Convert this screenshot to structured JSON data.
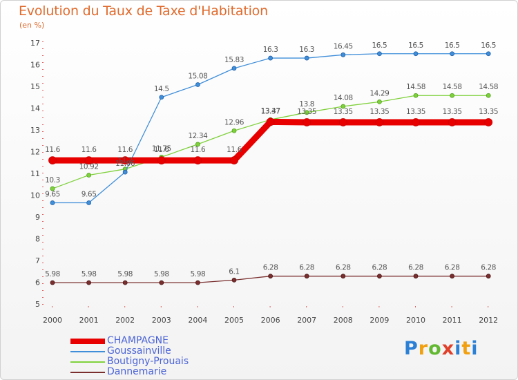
{
  "title": "Evolution du Taux de Taxe d'Habitation",
  "subtitle": "(en %)",
  "brand": "Proxiti",
  "chart_data": {
    "type": "line",
    "x": [
      "2000",
      "2001",
      "2002",
      "2003",
      "2004",
      "2005",
      "2006",
      "2007",
      "2008",
      "2009",
      "2010",
      "2011",
      "2012"
    ],
    "ylim": [
      5,
      17
    ],
    "yticks": [
      5,
      6,
      7,
      8,
      9,
      10,
      11,
      12,
      13,
      14,
      15,
      16,
      17
    ],
    "grid": false,
    "legend_placement": "bottom-left",
    "series": [
      {
        "name": "CHAMPAGNE",
        "color": "#e80000",
        "values": [
          11.6,
          11.6,
          11.6,
          11.6,
          11.6,
          11.6,
          13.37,
          13.35,
          13.35,
          13.35,
          13.35,
          13.35,
          13.35
        ],
        "labels": [
          "11.6",
          "11.6",
          "11.6",
          "11.6",
          "11.6",
          "11.6",
          "13.37",
          "13.35",
          "13.35",
          "13.35",
          "13.35",
          "13.35",
          "13.35"
        ]
      },
      {
        "name": "Goussainville",
        "color": "#3f8ed9",
        "values": [
          9.65,
          9.65,
          11.06,
          14.5,
          15.08,
          15.83,
          16.3,
          16.3,
          16.45,
          16.5,
          16.5,
          16.5,
          16.5
        ],
        "labels": [
          "9.65",
          "9.65",
          "11.06",
          "14.5",
          "15.08",
          "15.83",
          "16.3",
          "16.3",
          "16.45",
          "16.5",
          "16.5",
          "16.5",
          "16.5"
        ]
      },
      {
        "name": "Boutigny-Prouais",
        "color": "#7fd13b",
        "values": [
          10.3,
          10.92,
          11.2,
          11.75,
          12.34,
          12.96,
          13.47,
          13.8,
          14.08,
          14.29,
          14.58,
          14.58,
          14.58
        ],
        "labels": [
          "10.3",
          "10.92",
          "11.2",
          "11.75",
          "12.34",
          "12.96",
          "13.47",
          "13.8",
          "14.08",
          "14.29",
          "14.58",
          "14.58",
          "14.58"
        ]
      },
      {
        "name": "Dannemarie",
        "color": "#7a2e2e",
        "values": [
          5.98,
          5.98,
          5.98,
          5.98,
          5.98,
          6.1,
          6.28,
          6.28,
          6.28,
          6.28,
          6.28,
          6.28,
          6.28
        ],
        "labels": [
          "5.98",
          "5.98",
          "5.98",
          "5.98",
          "5.98",
          "6.1",
          "6.28",
          "6.28",
          "6.28",
          "6.28",
          "6.28",
          "6.28",
          "6.28"
        ]
      }
    ]
  }
}
